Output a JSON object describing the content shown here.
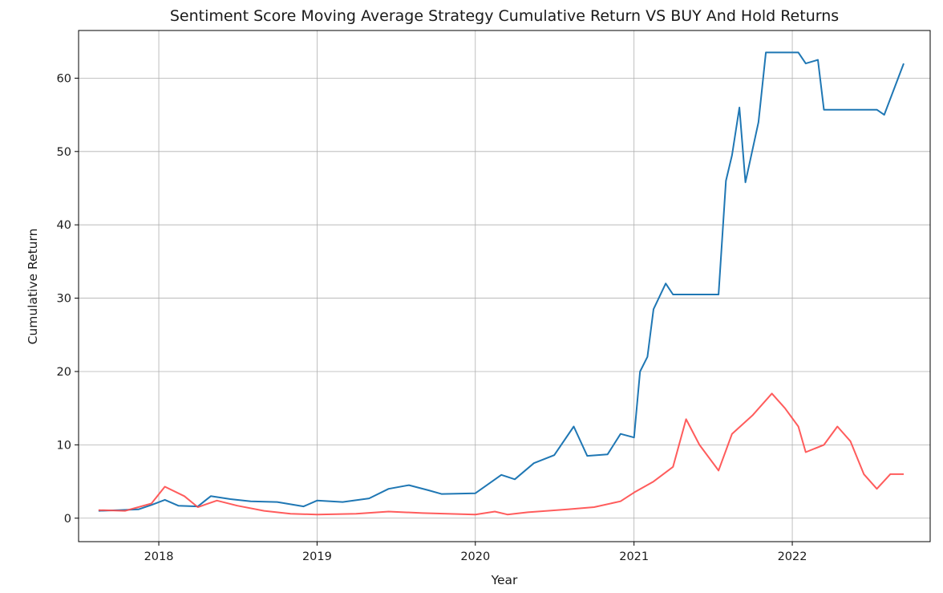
{
  "chart_data": {
    "type": "line",
    "title": "Sentiment Score Moving Average Strategy Cumulative Return VS BUY And Hold Returns",
    "xlabel": "Year",
    "ylabel": "Cumulative Return",
    "x_ticks": [
      "2018",
      "2019",
      "2020",
      "2021",
      "2022"
    ],
    "y_ticks": [
      0,
      10,
      20,
      30,
      40,
      50,
      60
    ],
    "xlim": [
      "2017-06-30",
      "2022-11-15"
    ],
    "ylim": [
      -3.2,
      66.5
    ],
    "grid": true,
    "legend": "none",
    "series": [
      {
        "color": "#1f77b4",
        "points": [
          [
            "2017-08-15",
            1.0
          ],
          [
            "2017-10-01",
            1.1
          ],
          [
            "2017-11-15",
            1.2
          ],
          [
            "2017-12-15",
            1.8
          ],
          [
            "2018-01-15",
            2.5
          ],
          [
            "2018-02-15",
            1.7
          ],
          [
            "2018-04-01",
            1.6
          ],
          [
            "2018-05-01",
            3.0
          ],
          [
            "2018-06-15",
            2.6
          ],
          [
            "2018-08-01",
            2.3
          ],
          [
            "2018-10-01",
            2.2
          ],
          [
            "2018-12-01",
            1.6
          ],
          [
            "2019-01-01",
            2.4
          ],
          [
            "2019-03-01",
            2.2
          ],
          [
            "2019-05-01",
            2.7
          ],
          [
            "2019-06-15",
            4.0
          ],
          [
            "2019-08-01",
            4.5
          ],
          [
            "2019-09-15",
            3.8
          ],
          [
            "2019-10-15",
            3.3
          ],
          [
            "2020-01-01",
            3.4
          ],
          [
            "2020-03-01",
            5.9
          ],
          [
            "2020-04-01",
            5.3
          ],
          [
            "2020-05-15",
            7.5
          ],
          [
            "2020-07-01",
            8.6
          ],
          [
            "2020-08-15",
            12.5
          ],
          [
            "2020-09-15",
            8.5
          ],
          [
            "2020-11-01",
            8.7
          ],
          [
            "2020-12-01",
            11.5
          ],
          [
            "2021-01-01",
            11.0
          ],
          [
            "2021-01-15",
            20.0
          ],
          [
            "2021-02-01",
            22.0
          ],
          [
            "2021-02-15",
            28.5
          ],
          [
            "2021-03-15",
            32.0
          ],
          [
            "2021-04-01",
            30.5
          ],
          [
            "2021-07-15",
            30.5
          ],
          [
            "2021-08-01",
            46.0
          ],
          [
            "2021-08-15",
            49.5
          ],
          [
            "2021-09-01",
            56.0
          ],
          [
            "2021-09-15",
            45.8
          ],
          [
            "2021-10-15",
            54.0
          ],
          [
            "2021-11-01",
            63.5
          ],
          [
            "2022-01-15",
            63.5
          ],
          [
            "2022-02-01",
            62.0
          ],
          [
            "2022-03-01",
            62.5
          ],
          [
            "2022-03-15",
            55.7
          ],
          [
            "2022-07-15",
            55.7
          ],
          [
            "2022-08-01",
            55.0
          ],
          [
            "2022-09-15",
            62.0
          ]
        ]
      },
      {
        "color": "#ff4a4a",
        "points": [
          [
            "2017-08-15",
            1.1
          ],
          [
            "2017-10-15",
            1.0
          ],
          [
            "2017-12-15",
            2.0
          ],
          [
            "2018-01-15",
            4.3
          ],
          [
            "2018-03-01",
            3.0
          ],
          [
            "2018-04-01",
            1.5
          ],
          [
            "2018-05-15",
            2.4
          ],
          [
            "2018-07-01",
            1.7
          ],
          [
            "2018-09-01",
            1.0
          ],
          [
            "2018-11-01",
            0.6
          ],
          [
            "2019-01-01",
            0.5
          ],
          [
            "2019-04-01",
            0.6
          ],
          [
            "2019-06-15",
            0.9
          ],
          [
            "2019-09-01",
            0.7
          ],
          [
            "2020-01-01",
            0.5
          ],
          [
            "2020-02-15",
            0.9
          ],
          [
            "2020-03-15",
            0.5
          ],
          [
            "2020-05-01",
            0.8
          ],
          [
            "2020-08-01",
            1.2
          ],
          [
            "2020-10-01",
            1.5
          ],
          [
            "2020-12-01",
            2.3
          ],
          [
            "2021-01-01",
            3.5
          ],
          [
            "2021-02-15",
            5.0
          ],
          [
            "2021-04-01",
            7.0
          ],
          [
            "2021-05-01",
            13.5
          ],
          [
            "2021-06-01",
            10.0
          ],
          [
            "2021-07-15",
            6.5
          ],
          [
            "2021-08-15",
            11.5
          ],
          [
            "2021-10-01",
            14.0
          ],
          [
            "2021-11-15",
            17.0
          ],
          [
            "2021-12-15",
            15.0
          ],
          [
            "2022-01-15",
            12.5
          ],
          [
            "2022-02-01",
            9.0
          ],
          [
            "2022-03-15",
            10.0
          ],
          [
            "2022-04-15",
            12.5
          ],
          [
            "2022-05-15",
            10.5
          ],
          [
            "2022-06-15",
            6.0
          ],
          [
            "2022-07-15",
            4.0
          ],
          [
            "2022-08-15",
            6.0
          ],
          [
            "2022-09-15",
            6.0
          ]
        ]
      }
    ]
  }
}
